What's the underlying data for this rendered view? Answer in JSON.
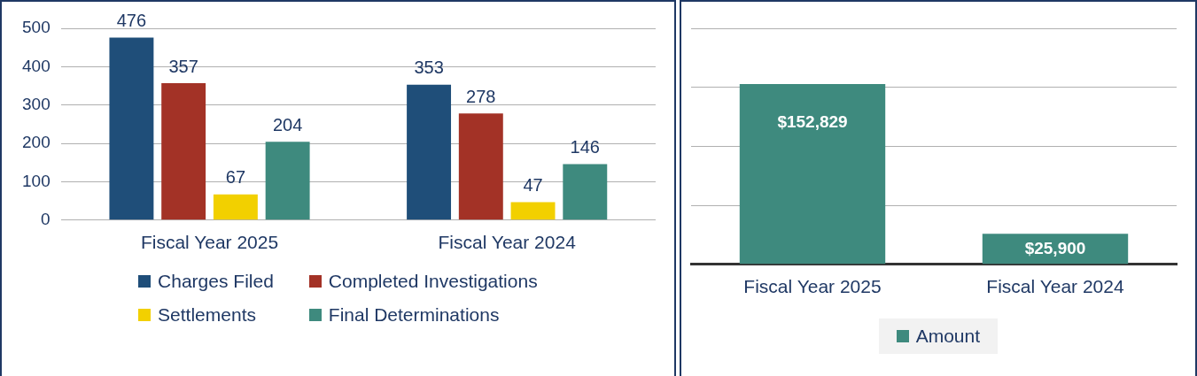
{
  "chart_data": [
    {
      "type": "bar",
      "categories": [
        "Fiscal Year 2025",
        "Fiscal Year 2024"
      ],
      "series": [
        {
          "name": "Charges Filed",
          "color": "#1f4e79",
          "values": [
            476,
            353
          ]
        },
        {
          "name": "Completed Investigations",
          "color": "#a33226",
          "values": [
            357,
            278
          ]
        },
        {
          "name": "Settlements",
          "color": "#f2d000",
          "values": [
            67,
            47
          ]
        },
        {
          "name": "Final Determinations",
          "color": "#3e8a7e",
          "values": [
            204,
            146
          ]
        }
      ],
      "ylim": [
        0,
        500
      ],
      "yticks": [
        0,
        100,
        200,
        300,
        400,
        500
      ],
      "grid": "y",
      "data_labels": true,
      "legend": "bottom"
    },
    {
      "type": "bar",
      "categories": [
        "Fiscal Year 2025",
        "Fiscal Year 2024"
      ],
      "series": [
        {
          "name": "Amount",
          "color": "#3e8a7e",
          "values": [
            152829,
            25900
          ],
          "value_labels": [
            "$152,829",
            "$25,900"
          ]
        }
      ],
      "ylim": [
        0,
        200000
      ],
      "yticks": [
        {
          "value": 0,
          "label": null
        },
        {
          "value": 50000,
          "label": null
        },
        {
          "value": 100000,
          "label": null
        },
        {
          "value": 150000,
          "label": null
        },
        {
          "value": 200000,
          "label": null
        }
      ],
      "grid": "y",
      "tick_labels": "x",
      "legend": "bottom"
    }
  ]
}
